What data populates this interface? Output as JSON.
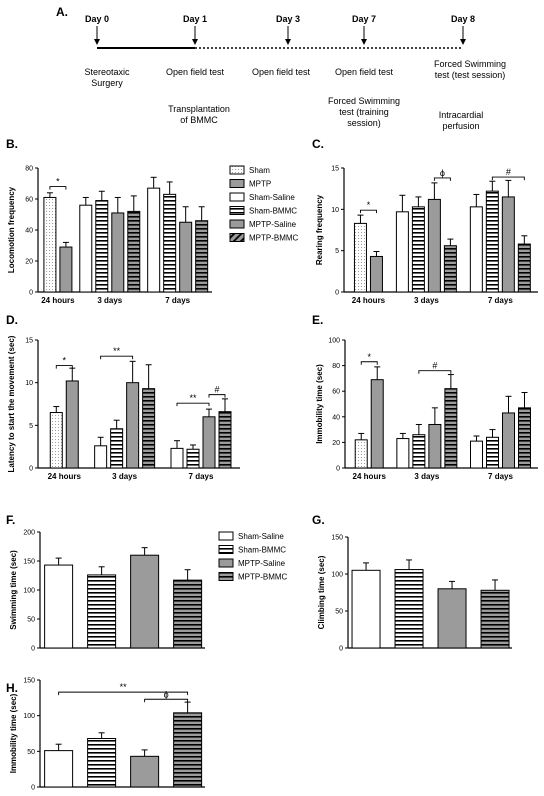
{
  "figure_label": "A.",
  "timeline": {
    "days": [
      "Day 0",
      "Day 1",
      "Day 3",
      "Day 7",
      "Day 8"
    ],
    "events_above": [
      "Stereotaxic\nSurgery",
      "Open field test",
      "Open field test",
      "Open field test",
      "Forced Swimming\ntest (test session)"
    ],
    "events_below": [
      "Transplantation\nof BMMC",
      "Forced Swimming\ntest (training\nsession)",
      "Intracardial\nperfusion"
    ]
  },
  "legends": {
    "top": [
      "Sham",
      "MPTP",
      "Sham-Saline",
      "Sham-BMMC",
      "MPTP-Saline",
      "MPTP-BMMC"
    ],
    "bottom": [
      "Sham-Saline",
      "Sham-BMMC",
      "MPTP-Saline",
      "MPTP-BMMC"
    ]
  },
  "colors": {
    "grey": "#9b9b9b",
    "black": "#000000",
    "white": "#ffffff"
  },
  "chart_data": [
    {
      "id": "B",
      "type": "bar",
      "panel_label": "B.",
      "ylabel": "Locomotion frequency",
      "ylim": [
        0,
        80
      ],
      "yticks": [
        0,
        20,
        40,
        60,
        80
      ],
      "groups": [
        {
          "label": "24 hours",
          "bars": [
            {
              "series": "Sham",
              "value": 61,
              "error": 3
            },
            {
              "series": "MPTP",
              "value": 29,
              "error": 3
            }
          ]
        },
        {
          "label": "3 days",
          "bars": [
            {
              "series": "Sham-Saline",
              "value": 56,
              "error": 5
            },
            {
              "series": "Sham-BMMC",
              "value": 59,
              "error": 6
            },
            {
              "series": "MPTP-Saline",
              "value": 51,
              "error": 10
            },
            {
              "series": "MPTP-BMMC",
              "value": 52,
              "error": 10
            }
          ]
        },
        {
          "label": "7 days",
          "bars": [
            {
              "series": "Sham-Saline",
              "value": 67,
              "error": 7
            },
            {
              "series": "Sham-BMMC",
              "value": 63,
              "error": 8
            },
            {
              "series": "MPTP-Saline",
              "value": 45,
              "error": 10
            },
            {
              "series": "MPTP-BMMC",
              "value": 46,
              "error": 9
            }
          ]
        }
      ],
      "annotations": [
        {
          "text": "*",
          "group": 0,
          "from": 0,
          "to": 1,
          "y": 68
        }
      ]
    },
    {
      "id": "C",
      "type": "bar",
      "panel_label": "C.",
      "ylabel": "Rearing frequency",
      "ylim": [
        0,
        15
      ],
      "yticks": [
        0,
        5,
        10,
        15
      ],
      "groups": [
        {
          "label": "24 hours",
          "bars": [
            {
              "series": "Sham",
              "value": 8.3,
              "error": 1
            },
            {
              "series": "MPTP",
              "value": 4.3,
              "error": 0.6
            }
          ]
        },
        {
          "label": "3 days",
          "bars": [
            {
              "series": "Sham-Saline",
              "value": 9.7,
              "error": 2
            },
            {
              "series": "Sham-BMMC",
              "value": 10.3,
              "error": 1.2
            },
            {
              "series": "MPTP-Saline",
              "value": 11.2,
              "error": 2
            },
            {
              "series": "MPTP-BMMC",
              "value": 5.6,
              "error": 0.8
            }
          ]
        },
        {
          "label": "7 days",
          "bars": [
            {
              "series": "Sham-Saline",
              "value": 10.3,
              "error": 1.5
            },
            {
              "series": "Sham-BMMC",
              "value": 12.2,
              "error": 1.2
            },
            {
              "series": "MPTP-Saline",
              "value": 11.5,
              "error": 2
            },
            {
              "series": "MPTP-BMMC",
              "value": 5.8,
              "error": 1
            }
          ]
        }
      ],
      "annotations": [
        {
          "text": "*",
          "group": 0,
          "from": 0,
          "to": 1,
          "y": 9.9
        },
        {
          "text": "ϕ",
          "group": 1,
          "from": 2,
          "to": 3,
          "y": 13.8
        },
        {
          "text": "#",
          "group": 2,
          "from": 1,
          "to": 3,
          "y": 13.9
        }
      ]
    },
    {
      "id": "D",
      "type": "bar",
      "panel_label": "D.",
      "ylabel": "Latency to start the movement (sec)",
      "ylim": [
        0,
        15
      ],
      "yticks": [
        0,
        5,
        10,
        15
      ],
      "groups": [
        {
          "label": "24 hours",
          "bars": [
            {
              "series": "Sham",
              "value": 6.5,
              "error": 0.7
            },
            {
              "series": "MPTP",
              "value": 10.2,
              "error": 1.5
            }
          ]
        },
        {
          "label": "3 days",
          "bars": [
            {
              "series": "Sham-Saline",
              "value": 2.6,
              "error": 1
            },
            {
              "series": "Sham-BMMC",
              "value": 4.6,
              "error": 1
            },
            {
              "series": "MPTP-Saline",
              "value": 10,
              "error": 2.5
            },
            {
              "series": "MPTP-BMMC",
              "value": 9.3,
              "error": 2.8
            }
          ]
        },
        {
          "label": "7 days",
          "bars": [
            {
              "series": "Sham-Saline",
              "value": 2.3,
              "error": 0.9
            },
            {
              "series": "Sham-BMMC",
              "value": 2.2,
              "error": 0.5
            },
            {
              "series": "MPTP-Saline",
              "value": 6,
              "error": 0.9
            },
            {
              "series": "MPTP-BMMC",
              "value": 6.6,
              "error": 1.5
            }
          ]
        }
      ],
      "annotations": [
        {
          "text": "*",
          "group": 0,
          "from": 0,
          "to": 1,
          "y": 12
        },
        {
          "text": "**",
          "group": 1,
          "from": 0,
          "to": 2,
          "y": 13.1
        },
        {
          "text": "**",
          "group": 2,
          "from": 0,
          "to": 2,
          "y": 7.6
        },
        {
          "text": "#",
          "group": 2,
          "from": 2,
          "to": 3,
          "y": 8.6
        }
      ]
    },
    {
      "id": "E",
      "type": "bar",
      "panel_label": "E.",
      "ylabel": "Immobility time (sec)",
      "ylim": [
        0,
        100
      ],
      "yticks": [
        0,
        20,
        40,
        60,
        80,
        100
      ],
      "groups": [
        {
          "label": "24 hours",
          "bars": [
            {
              "series": "Sham",
              "value": 22,
              "error": 5
            },
            {
              "series": "MPTP",
              "value": 69,
              "error": 10
            }
          ]
        },
        {
          "label": "3 days",
          "bars": [
            {
              "series": "Sham-Saline",
              "value": 23,
              "error": 4
            },
            {
              "series": "Sham-BMMC",
              "value": 26,
              "error": 8
            },
            {
              "series": "MPTP-Saline",
              "value": 34,
              "error": 13
            },
            {
              "series": "MPTP-BMMC",
              "value": 62,
              "error": 11
            }
          ]
        },
        {
          "label": "7 days",
          "bars": [
            {
              "series": "Sham-Saline",
              "value": 21,
              "error": 4
            },
            {
              "series": "Sham-BMMC",
              "value": 24,
              "error": 6
            },
            {
              "series": "MPTP-Saline",
              "value": 43,
              "error": 13
            },
            {
              "series": "MPTP-BMMC",
              "value": 47,
              "error": 12
            }
          ]
        }
      ],
      "annotations": [
        {
          "text": "*",
          "group": 0,
          "from": 0,
          "to": 1,
          "y": 83
        },
        {
          "text": "#",
          "group": 1,
          "from": 1,
          "to": 3,
          "y": 76
        }
      ]
    },
    {
      "id": "F",
      "type": "bar",
      "panel_label": "F.",
      "ylabel": "Swimming time (sec)",
      "ylim": [
        0,
        200
      ],
      "yticks": [
        0,
        50,
        100,
        150,
        200
      ],
      "groups": [
        {
          "label": "",
          "bars": [
            {
              "series": "Sham-Saline",
              "value": 143,
              "error": 12
            },
            {
              "series": "Sham-BMMC",
              "value": 126,
              "error": 14
            },
            {
              "series": "MPTP-Saline",
              "value": 160,
              "error": 13
            },
            {
              "series": "MPTP-BMMC",
              "value": 117,
              "error": 18
            }
          ]
        }
      ],
      "annotations": []
    },
    {
      "id": "G",
      "type": "bar",
      "panel_label": "G.",
      "ylabel": "Climbing time (sec)",
      "ylim": [
        0,
        150
      ],
      "yticks": [
        0,
        50,
        100,
        150
      ],
      "groups": [
        {
          "label": "",
          "bars": [
            {
              "series": "Sham-Saline",
              "value": 105,
              "error": 10
            },
            {
              "series": "Sham-BMMC",
              "value": 106,
              "error": 13
            },
            {
              "series": "MPTP-Saline",
              "value": 80,
              "error": 10
            },
            {
              "series": "MPTP-BMMC",
              "value": 78,
              "error": 14
            }
          ]
        }
      ],
      "annotations": []
    },
    {
      "id": "H",
      "type": "bar",
      "panel_label": "H.",
      "ylabel": "Immobility time (sec)",
      "ylim": [
        0,
        150
      ],
      "yticks": [
        0,
        50,
        100,
        150
      ],
      "groups": [
        {
          "label": "",
          "bars": [
            {
              "series": "Sham-Saline",
              "value": 51,
              "error": 9
            },
            {
              "series": "Sham-BMMC",
              "value": 68,
              "error": 8
            },
            {
              "series": "MPTP-Saline",
              "value": 43,
              "error": 9
            },
            {
              "series": "MPTP-BMMC",
              "value": 104,
              "error": 15
            }
          ]
        }
      ],
      "annotations": [
        {
          "text": "**",
          "group": 0,
          "from": 0,
          "to": 3,
          "y": 133
        },
        {
          "text": "ϕ",
          "group": 0,
          "from": 2,
          "to": 3,
          "y": 123
        }
      ]
    }
  ]
}
